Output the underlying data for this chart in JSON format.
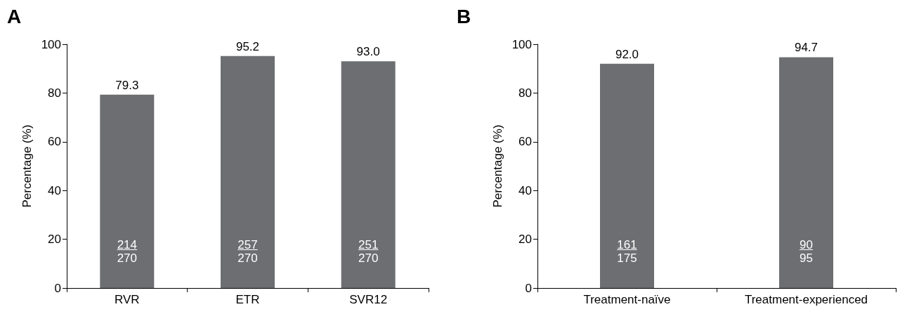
{
  "chart_data": [
    {
      "type": "bar",
      "title": "A",
      "ylabel": "Percentage (%)",
      "categories": [
        "RVR",
        "ETR",
        "SVR12"
      ],
      "values": [
        79.3,
        95.2,
        93.0
      ],
      "value_labels": [
        "79.3",
        "95.2",
        "93.0"
      ],
      "color": "#6d6e71",
      "ylim": [
        0,
        100
      ],
      "yticks": [
        0,
        20,
        40,
        60,
        80,
        100
      ],
      "grid": false,
      "annotations": [
        "214\n270",
        "257\n270",
        "251\n270"
      ]
    },
    {
      "type": "bar",
      "title": "B",
      "ylabel": "Percentage (%)",
      "categories": [
        "Treatment-naïve",
        "Treatment-experienced"
      ],
      "values": [
        92.0,
        94.7
      ],
      "value_labels": [
        "92.0",
        "94.7"
      ],
      "color": "#6d6e71",
      "ylim": [
        0,
        100
      ],
      "yticks": [
        0,
        20,
        40,
        60,
        80,
        100
      ],
      "grid": false,
      "annotations": [
        "161\n175",
        "90\n95"
      ]
    }
  ]
}
